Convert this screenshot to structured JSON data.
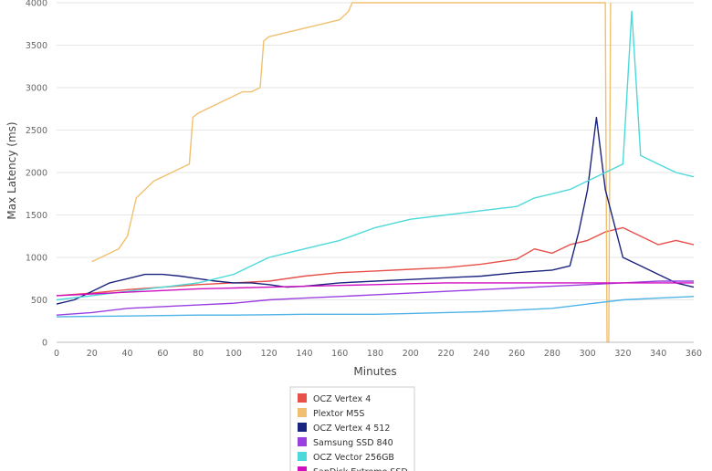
{
  "chart_data": {
    "type": "line",
    "xlabel": "Minutes",
    "ylabel": "Max Latency (ms)",
    "xlim": [
      0,
      360
    ],
    "ylim": [
      0,
      4000
    ],
    "x_ticks": [
      0,
      20,
      40,
      60,
      80,
      100,
      120,
      140,
      160,
      180,
      200,
      220,
      240,
      260,
      280,
      300,
      320,
      340,
      360
    ],
    "y_ticks": [
      0,
      500,
      1000,
      1500,
      2000,
      2500,
      3000,
      3500,
      4000
    ],
    "grid": "horizontal",
    "legend_position": "bottom-center",
    "series": [
      {
        "name": "OCZ Vertex 4",
        "color": "#e8504a",
        "points": [
          [
            0,
            550
          ],
          [
            20,
            580
          ],
          [
            40,
            620
          ],
          [
            60,
            650
          ],
          [
            80,
            680
          ],
          [
            100,
            700
          ],
          [
            120,
            720
          ],
          [
            140,
            780
          ],
          [
            160,
            820
          ],
          [
            180,
            840
          ],
          [
            200,
            860
          ],
          [
            220,
            880
          ],
          [
            240,
            920
          ],
          [
            260,
            980
          ],
          [
            270,
            1100
          ],
          [
            280,
            1050
          ],
          [
            290,
            1150
          ],
          [
            300,
            1200
          ],
          [
            310,
            1300
          ],
          [
            320,
            1350
          ],
          [
            330,
            1250
          ],
          [
            340,
            1150
          ],
          [
            350,
            1200
          ],
          [
            360,
            1150
          ]
        ]
      },
      {
        "name": "Plextor M5S",
        "color": "#f0c070",
        "points": [
          [
            20,
            950
          ],
          [
            25,
            1000
          ],
          [
            30,
            1050
          ],
          [
            35,
            1100
          ],
          [
            40,
            1250
          ],
          [
            45,
            1700
          ],
          [
            50,
            1800
          ],
          [
            55,
            1900
          ],
          [
            60,
            1950
          ],
          [
            65,
            2000
          ],
          [
            70,
            2050
          ],
          [
            75,
            2100
          ],
          [
            77,
            2650
          ],
          [
            80,
            2700
          ],
          [
            85,
            2750
          ],
          [
            90,
            2800
          ],
          [
            95,
            2850
          ],
          [
            100,
            2900
          ],
          [
            105,
            2950
          ],
          [
            110,
            2950
          ],
          [
            115,
            3000
          ],
          [
            117,
            3550
          ],
          [
            120,
            3600
          ],
          [
            130,
            3650
          ],
          [
            140,
            3700
          ],
          [
            150,
            3750
          ],
          [
            160,
            3800
          ],
          [
            165,
            3900
          ],
          [
            167,
            4000
          ],
          [
            310,
            4000
          ],
          [
            311,
            0
          ],
          [
            312,
            0
          ],
          [
            313,
            4000
          ]
        ]
      },
      {
        "name": "OCZ Vertex 4 512",
        "color": "#1a237e",
        "points": [
          [
            0,
            450
          ],
          [
            10,
            500
          ],
          [
            20,
            600
          ],
          [
            30,
            700
          ],
          [
            40,
            750
          ],
          [
            50,
            800
          ],
          [
            60,
            800
          ],
          [
            70,
            780
          ],
          [
            80,
            750
          ],
          [
            90,
            720
          ],
          [
            100,
            700
          ],
          [
            110,
            700
          ],
          [
            120,
            680
          ],
          [
            130,
            650
          ],
          [
            140,
            660
          ],
          [
            160,
            700
          ],
          [
            180,
            720
          ],
          [
            200,
            740
          ],
          [
            220,
            760
          ],
          [
            240,
            780
          ],
          [
            260,
            820
          ],
          [
            280,
            850
          ],
          [
            290,
            900
          ],
          [
            295,
            1300
          ],
          [
            300,
            1800
          ],
          [
            305,
            2650
          ],
          [
            310,
            1800
          ],
          [
            320,
            1000
          ],
          [
            330,
            900
          ],
          [
            340,
            800
          ],
          [
            350,
            700
          ],
          [
            360,
            650
          ]
        ]
      },
      {
        "name": "Samsung SSD 840",
        "color": "#9b40e0",
        "points": [
          [
            0,
            320
          ],
          [
            20,
            350
          ],
          [
            40,
            400
          ],
          [
            60,
            420
          ],
          [
            80,
            440
          ],
          [
            100,
            460
          ],
          [
            120,
            500
          ],
          [
            140,
            520
          ],
          [
            160,
            540
          ],
          [
            180,
            560
          ],
          [
            200,
            580
          ],
          [
            220,
            600
          ],
          [
            240,
            620
          ],
          [
            260,
            640
          ],
          [
            280,
            660
          ],
          [
            300,
            680
          ],
          [
            320,
            700
          ],
          [
            340,
            720
          ],
          [
            360,
            720
          ]
        ]
      },
      {
        "name": "OCZ Vector 256GB",
        "color": "#4dd9d9",
        "points": [
          [
            0,
            500
          ],
          [
            20,
            550
          ],
          [
            40,
            600
          ],
          [
            60,
            650
          ],
          [
            80,
            700
          ],
          [
            100,
            800
          ],
          [
            120,
            1000
          ],
          [
            140,
            1100
          ],
          [
            160,
            1200
          ],
          [
            180,
            1350
          ],
          [
            200,
            1450
          ],
          [
            220,
            1500
          ],
          [
            240,
            1550
          ],
          [
            260,
            1600
          ],
          [
            270,
            1700
          ],
          [
            280,
            1750
          ],
          [
            290,
            1800
          ],
          [
            300,
            1900
          ],
          [
            310,
            2000
          ],
          [
            320,
            2100
          ],
          [
            325,
            3900
          ],
          [
            330,
            2200
          ],
          [
            340,
            2100
          ],
          [
            350,
            2000
          ],
          [
            360,
            1950
          ]
        ]
      },
      {
        "name": "SanDisk Extreme SSD",
        "color": "#d010c0",
        "points": [
          [
            0,
            550
          ],
          [
            20,
            570
          ],
          [
            40,
            590
          ],
          [
            60,
            610
          ],
          [
            80,
            630
          ],
          [
            100,
            640
          ],
          [
            120,
            650
          ],
          [
            140,
            660
          ],
          [
            160,
            670
          ],
          [
            180,
            680
          ],
          [
            200,
            690
          ],
          [
            220,
            700
          ],
          [
            240,
            700
          ],
          [
            260,
            700
          ],
          [
            280,
            700
          ],
          [
            300,
            700
          ],
          [
            320,
            700
          ],
          [
            340,
            700
          ],
          [
            360,
            700
          ]
        ]
      },
      {
        "name": "",
        "color": "#4fb3e8",
        "points": [
          [
            0,
            300
          ],
          [
            20,
            305
          ],
          [
            40,
            310
          ],
          [
            60,
            315
          ],
          [
            80,
            320
          ],
          [
            100,
            320
          ],
          [
            120,
            325
          ],
          [
            140,
            330
          ],
          [
            160,
            330
          ],
          [
            180,
            330
          ],
          [
            200,
            340
          ],
          [
            220,
            350
          ],
          [
            240,
            360
          ],
          [
            260,
            380
          ],
          [
            280,
            400
          ],
          [
            300,
            450
          ],
          [
            320,
            500
          ],
          [
            340,
            520
          ],
          [
            360,
            540
          ]
        ]
      }
    ]
  }
}
